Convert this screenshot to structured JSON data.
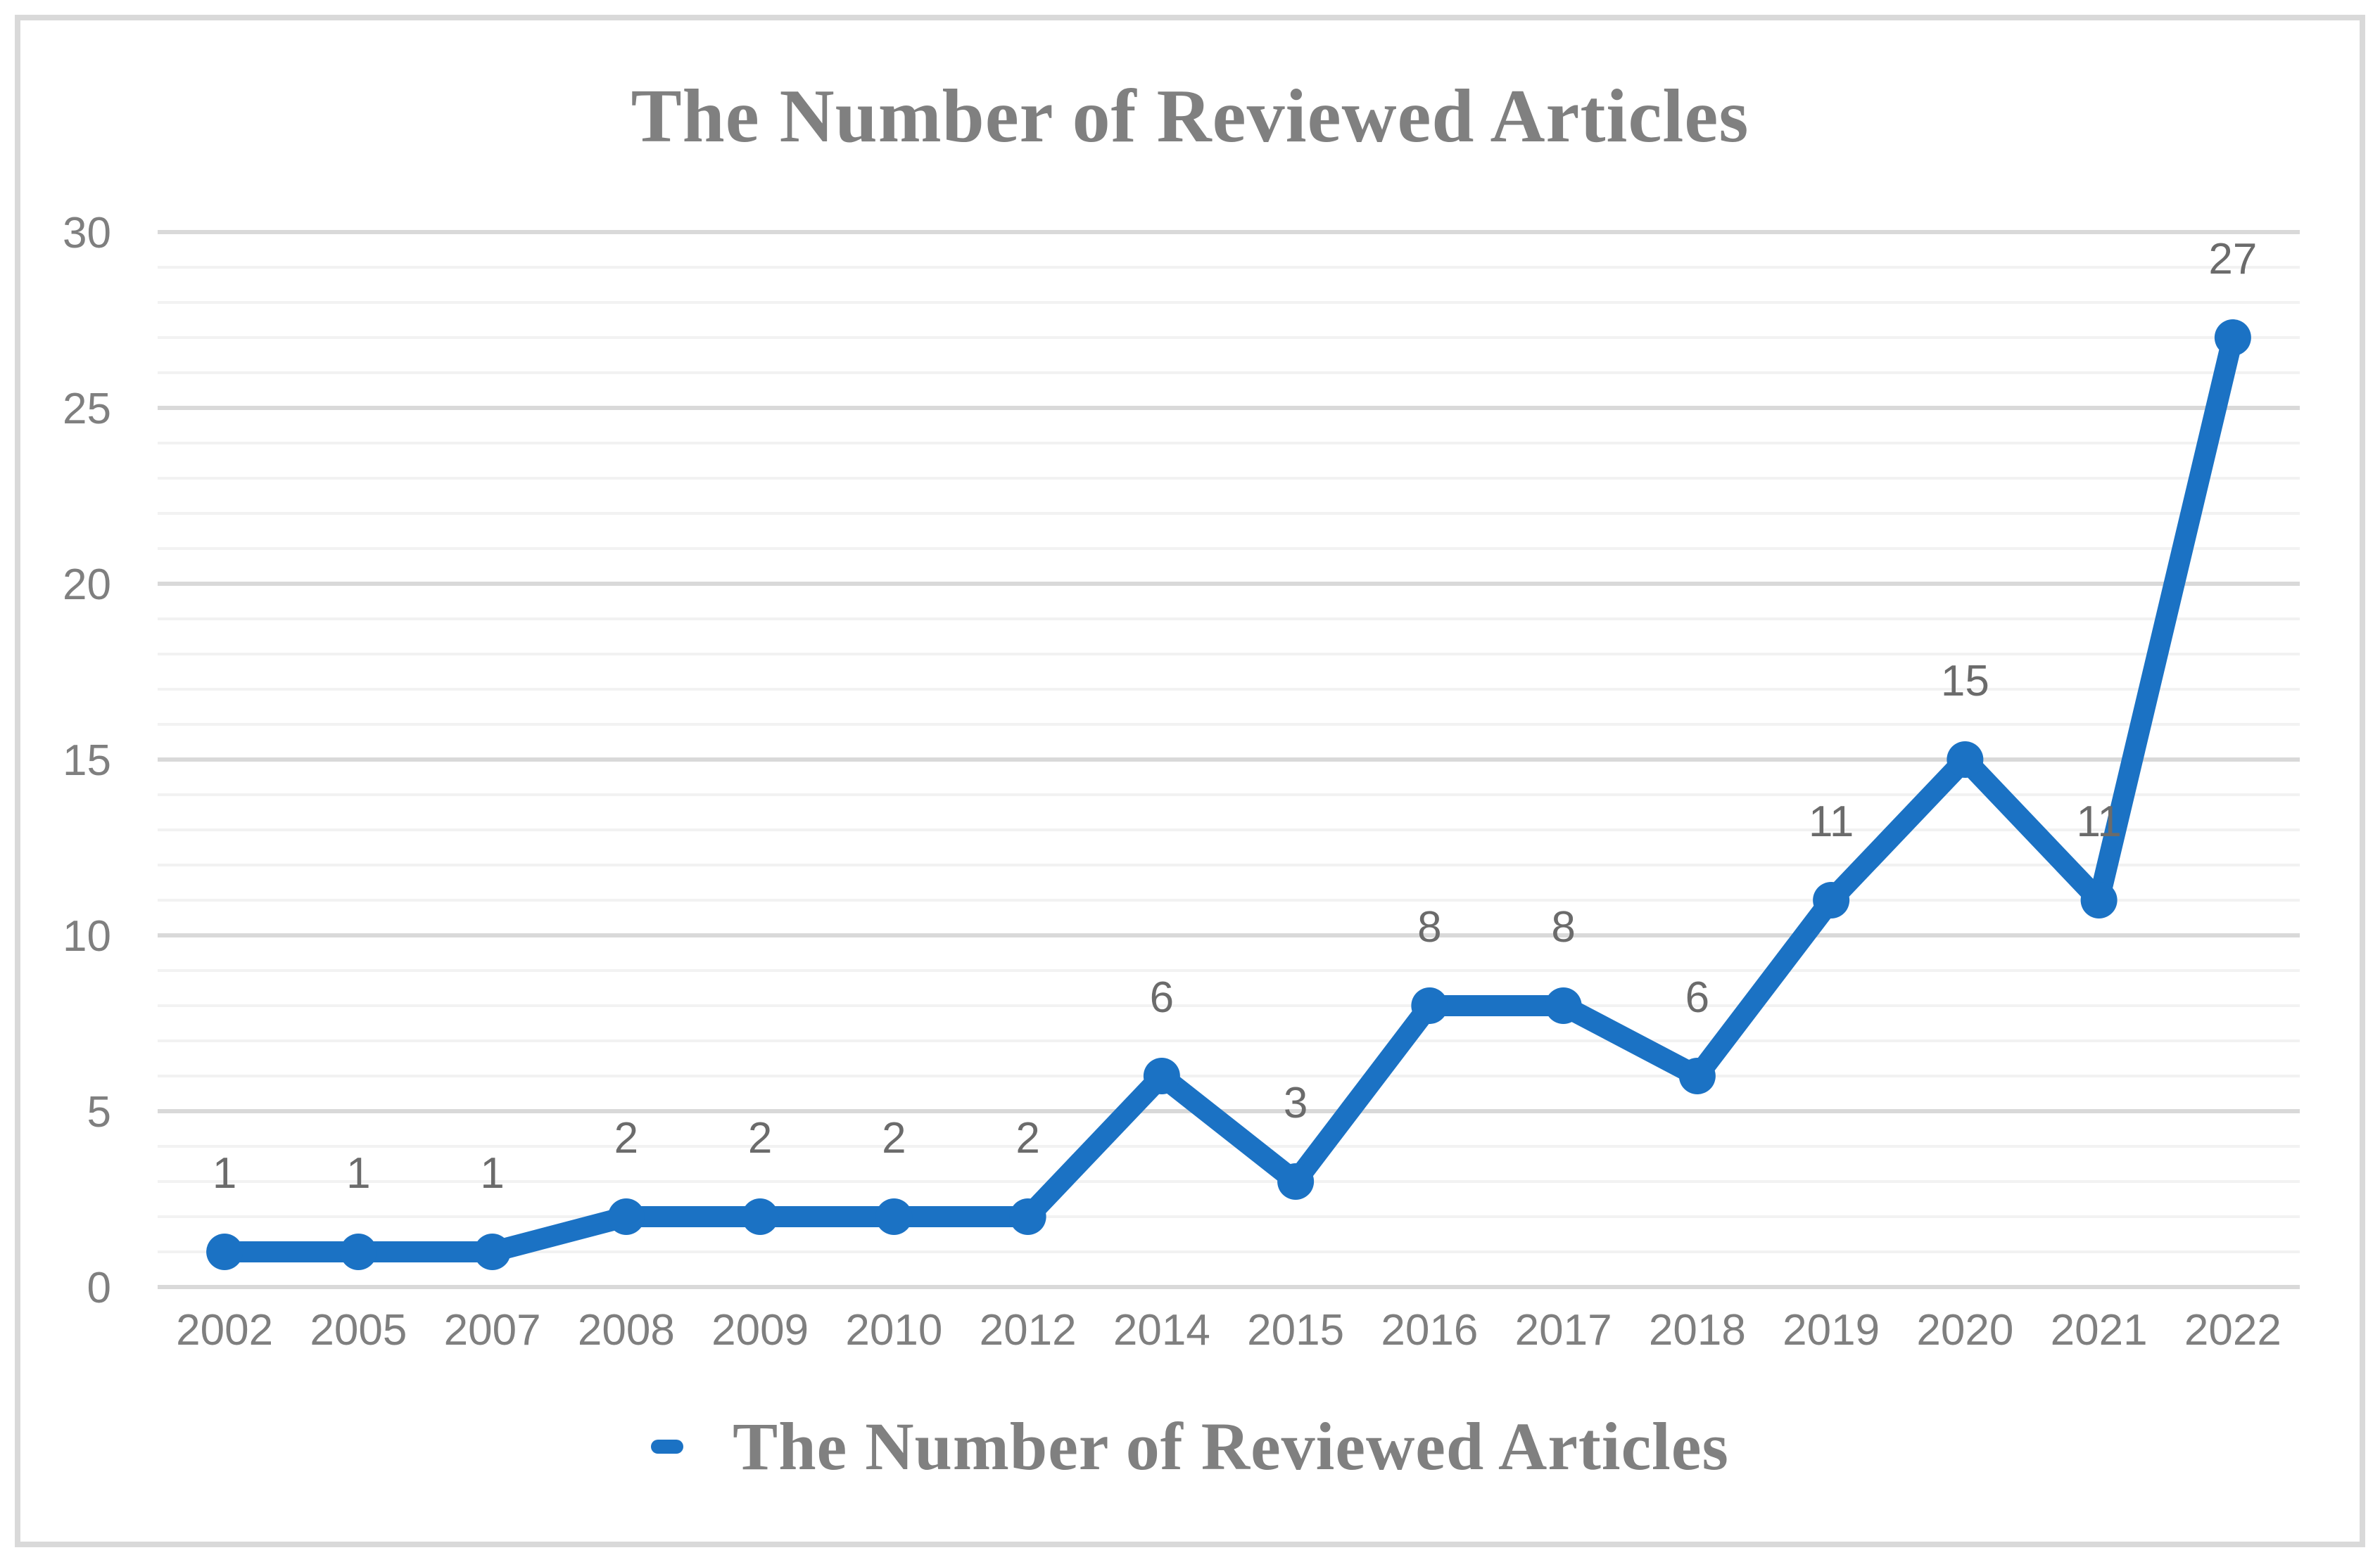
{
  "chart": {
    "title": "The Number of Reviewed Articles",
    "legend_label": "The Number of Reviewed Articles"
  },
  "chart_data": {
    "type": "line",
    "title": "The Number of Reviewed Articles",
    "categories": [
      "2002",
      "2005",
      "2007",
      "2008",
      "2009",
      "2010",
      "2012",
      "2014",
      "2015",
      "2016",
      "2017",
      "2018",
      "2019",
      "2020",
      "2021",
      "2022"
    ],
    "series": [
      {
        "name": "The Number of Reviewed Articles",
        "values": [
          1,
          1,
          1,
          2,
          2,
          2,
          2,
          6,
          3,
          8,
          8,
          6,
          11,
          15,
          11,
          27
        ]
      }
    ],
    "data_labels": true,
    "xlabel": "",
    "ylabel": "",
    "ylim": [
      0,
      30
    ],
    "y_major_ticks": [
      0,
      5,
      10,
      15,
      20,
      25,
      30
    ],
    "y_minor_step": 1,
    "grid": {
      "horizontal_major": true,
      "horizontal_minor": true,
      "vertical": false
    },
    "legend_position": "bottom",
    "marker_style": "circle",
    "colors": {
      "series_line": "#1B72C4",
      "major_gridline": "#D9D9D9",
      "minor_gridline": "#F2F2F2",
      "axis_label_text": "#7F7F7F",
      "data_label_text": "#6B6B6B",
      "title_text": "#808080",
      "frame_border": "#D9D9D9",
      "background": "#FFFFFF"
    }
  }
}
